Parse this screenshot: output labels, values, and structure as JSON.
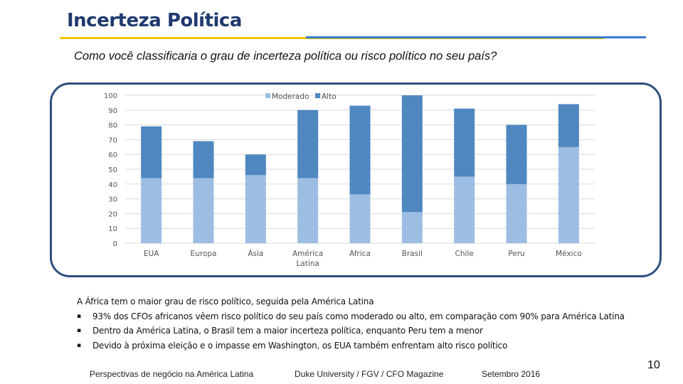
{
  "slide": {
    "title": "Incerteza Política",
    "subtitle": "Como você classificaria o grau de incerteza política ou risco político no seu país?",
    "summary_heading": "A África tem o maior grau de risco político, seguida pela América Latina",
    "bullets": [
      "93% dos CFOs africanos vêem risco político do seu país como moderado ou alto, em comparação com 90% para América Latina",
      "Dentro da América Latina, o Brasil tem a maior incerteza política, enquanto Peru tem a menor",
      "Devido à próxima eleição e o impasse em Washington, os EUA também enfrentam alto risco político"
    ],
    "bullet_symbol": "▪",
    "footer_left": "Perspectivas de negócio na América Latina",
    "footer_center": "Duke University / FGV / CFO Magazine",
    "footer_right": "Setembro 2016",
    "page_number": "10"
  },
  "colors": {
    "moderado": "#9dbde3",
    "alto": "#4f87c0",
    "grid": "#d9d9d9",
    "axis_text": "#555555"
  },
  "chart_data": {
    "type": "bar",
    "stacked": true,
    "categories": [
      "EUA",
      "Europa",
      "Ásia",
      "América\nLatina",
      "Africa",
      "Brasil",
      "Chile",
      "Peru",
      "México"
    ],
    "series": [
      {
        "name": "Moderado",
        "values": [
          44,
          44,
          46,
          44,
          33,
          21,
          45,
          40,
          65
        ]
      },
      {
        "name": "Alto",
        "values": [
          35,
          25,
          14,
          46,
          60,
          79,
          46,
          40,
          29
        ]
      }
    ],
    "ylim": [
      0,
      100
    ],
    "yticks": [
      0,
      10,
      20,
      30,
      40,
      50,
      60,
      70,
      80,
      90,
      100
    ],
    "legend": "top-center",
    "grid": true
  }
}
